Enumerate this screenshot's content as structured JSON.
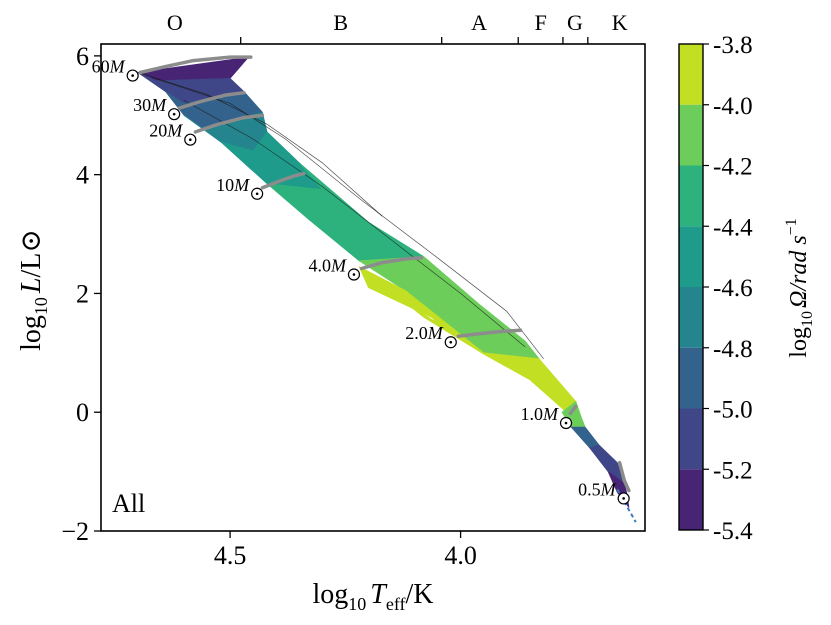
{
  "chart_data": {
    "type": "heatmap",
    "title": "",
    "panel_label": "All",
    "xlabel_main": "log",
    "xlabel_sub": "10",
    "xlabel_var": "T",
    "xlabel_var_sub": "eff",
    "xlabel_unit": "/K",
    "ylabel_main": "log",
    "ylabel_sub": "10",
    "ylabel_var": "L",
    "ylabel_unit": "/L",
    "ylabel_sun": "⊙",
    "xlim": [
      4.78,
      3.6
    ],
    "ylim": [
      -2.0,
      6.2
    ],
    "x_ticks": [
      {
        "value": 4.5,
        "label": "4.5"
      },
      {
        "value": 4.0,
        "label": "4.0"
      }
    ],
    "y_ticks": [
      {
        "value": 6,
        "label": "6"
      },
      {
        "value": 4,
        "label": "4"
      },
      {
        "value": 2,
        "label": "2"
      },
      {
        "value": 0,
        "label": "0"
      },
      {
        "value": -2,
        "label": "−2"
      }
    ],
    "spectral_boundaries": [
      4.477,
      4.041,
      3.875,
      3.778,
      3.724
    ],
    "spectral_classes": [
      {
        "label": "O",
        "x": 4.62
      },
      {
        "label": "B",
        "x": 4.26
      },
      {
        "label": "A",
        "x": 3.96
      },
      {
        "label": "F",
        "x": 3.826
      },
      {
        "label": "G",
        "x": 3.752
      },
      {
        "label": "K",
        "x": 3.655
      }
    ],
    "colorbar": {
      "label_main": "log",
      "label_sub": "10",
      "label_var": "Ω/rad s",
      "label_exp": "−1",
      "ticks": [
        "-3.8",
        "-4.0",
        "-4.2",
        "-4.4",
        "-4.6",
        "-4.8",
        "-5.0",
        "-5.2",
        "-5.4"
      ],
      "tick_values": [
        -3.8,
        -4.0,
        -4.2,
        -4.4,
        -4.6,
        -4.8,
        -5.0,
        -5.2,
        -5.4
      ],
      "colors": [
        "#c2df23",
        "#6ccd5a",
        "#2db27d",
        "#1e9b8a",
        "#25858e",
        "#33638d",
        "#3f4788",
        "#482475"
      ]
    },
    "tracks": [
      {
        "mass_label": "60M",
        "values": [
          [
            4.695,
            5.72
          ],
          [
            4.64,
            5.82
          ],
          [
            4.58,
            5.92
          ],
          [
            4.5,
            5.98
          ],
          [
            4.455,
            5.98
          ]
        ],
        "label_pos": [
          4.72,
          5.82
        ]
      },
      {
        "mass_label": "30M",
        "values": [
          [
            4.61,
            5.12
          ],
          [
            4.56,
            5.24
          ],
          [
            4.51,
            5.34
          ],
          [
            4.47,
            5.38
          ]
        ],
        "label_pos": [
          4.63,
          5.17
        ]
      },
      {
        "mass_label": "20M",
        "values": [
          [
            4.575,
            4.72
          ],
          [
            4.53,
            4.84
          ],
          [
            4.47,
            4.96
          ],
          [
            4.43,
            5.0
          ]
        ],
        "label_pos": [
          4.595,
          4.74
        ]
      },
      {
        "mass_label": "10M",
        "values": [
          [
            4.43,
            3.78
          ],
          [
            4.39,
            3.9
          ],
          [
            4.36,
            3.98
          ],
          [
            4.34,
            4.02
          ]
        ],
        "label_pos": [
          4.45,
          3.83
        ]
      },
      {
        "mass_label": "4.0M",
        "values": [
          [
            4.215,
            2.42
          ],
          [
            4.17,
            2.52
          ],
          [
            4.12,
            2.58
          ],
          [
            4.085,
            2.6
          ]
        ],
        "label_pos": [
          4.24,
          2.47
        ]
      },
      {
        "mass_label": "2.0M",
        "values": [
          [
            4.005,
            1.28
          ],
          [
            3.96,
            1.32
          ],
          [
            3.91,
            1.36
          ],
          [
            3.87,
            1.38
          ]
        ],
        "label_pos": [
          4.03,
          1.33
        ]
      },
      {
        "mass_label": "1.0M",
        "values": [
          [
            3.762,
            -0.02
          ],
          [
            3.755,
            0.05
          ],
          [
            3.75,
            0.1
          ]
        ],
        "label_pos": [
          3.78,
          -0.03
        ]
      },
      {
        "mass_label": "0.5M",
        "values": [
          [
            3.635,
            -1.32
          ],
          [
            3.645,
            -1.15
          ],
          [
            3.655,
            -0.85
          ]
        ],
        "label_pos": [
          3.655,
          -1.3
        ]
      }
    ]
  }
}
